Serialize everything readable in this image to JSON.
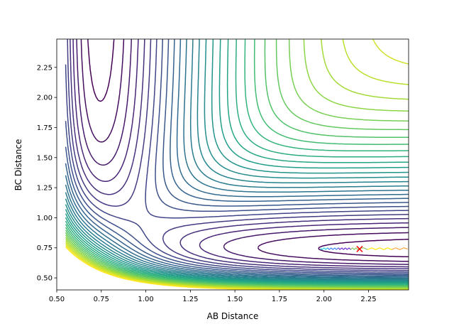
{
  "chart_data": {
    "type": "contour",
    "title": "",
    "xlabel": "AB Distance",
    "ylabel": "BC Distance",
    "xlim": [
      0.5,
      2.475
    ],
    "ylim": [
      0.4,
      2.485
    ],
    "xticks": [
      "0.50",
      "0.75",
      "1.00",
      "1.25",
      "1.50",
      "1.75",
      "2.00",
      "2.25"
    ],
    "yticks": [
      "0.50",
      "0.75",
      "1.00",
      "1.25",
      "1.50",
      "1.75",
      "2.00",
      "2.25"
    ],
    "colormap": "viridis",
    "grid": false,
    "contour_levels": {
      "min": -4.6,
      "max": -0.2,
      "count": 30
    },
    "trajectory": {
      "x": [
        1.98,
        1.99,
        2.0,
        2.01,
        2.02,
        2.03,
        2.04,
        2.05,
        2.06,
        2.07,
        2.08,
        2.09,
        2.1,
        2.11,
        2.12,
        2.13,
        2.14,
        2.15,
        2.16,
        2.17,
        2.18,
        2.19,
        2.2,
        2.2225,
        2.245,
        2.2675,
        2.29,
        2.3125,
        2.335,
        2.3575,
        2.38,
        2.4025,
        2.425,
        2.4475,
        2.47
      ],
      "y": [
        0.745,
        0.735,
        0.75,
        0.735,
        0.75,
        0.735,
        0.75,
        0.735,
        0.75,
        0.735,
        0.75,
        0.735,
        0.75,
        0.735,
        0.75,
        0.735,
        0.75,
        0.735,
        0.75,
        0.735,
        0.75,
        0.735,
        0.745,
        0.75,
        0.735,
        0.75,
        0.735,
        0.75,
        0.735,
        0.75,
        0.735,
        0.75,
        0.735,
        0.75,
        0.74
      ],
      "colors": [
        "#22d3ee",
        "#3b82f6",
        "#6d28d9",
        "#86c35a",
        "#ffe400",
        "#f5a742"
      ]
    },
    "marker": {
      "x": 2.2,
      "y": 0.74,
      "symbol": "x",
      "color": "#ff0000"
    }
  }
}
